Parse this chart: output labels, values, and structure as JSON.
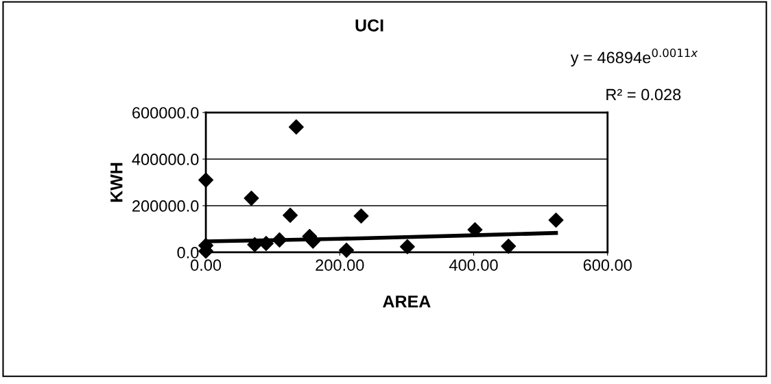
{
  "chart_data": {
    "type": "scatter",
    "title": "UCI",
    "xlabel": "AREA",
    "ylabel": "KWH",
    "annotations": [
      "y = 46894e$^{0.0011x}$",
      "R² = 0.028"
    ],
    "series": [
      {
        "color": "#000000",
        "marker": "diamond",
        "x": [
          0,
          0,
          0,
          135,
          68,
          126,
          232,
          73,
          90,
          110,
          155,
          160,
          210,
          301,
          402,
          452,
          523
        ],
        "values": [
          310000,
          29000,
          5000,
          538000,
          232000,
          159000,
          156000,
          33000,
          38000,
          53000,
          68000,
          48000,
          9000,
          24000,
          97000,
          26000,
          138000
        ]
      },
      {
        "type": "line",
        "color": "#000000",
        "marker": "none",
        "x": [
          0,
          100,
          200,
          300,
          400,
          523
        ],
        "values": [
          47000,
          52000,
          58000,
          65000,
          73000,
          83000
        ]
      }
    ],
    "xlim": [
      0,
      600
    ],
    "ylim": [
      0,
      600000
    ],
    "xticks": [
      {
        "value": 0,
        "label": "0.00"
      },
      {
        "value": 200,
        "label": "200.00"
      },
      {
        "value": 400,
        "label": "400.00"
      },
      {
        "value": 600,
        "label": "600.00"
      }
    ],
    "yticks": [
      {
        "value": 0,
        "label": "0.0"
      },
      {
        "value": 200000,
        "label": "200000.0"
      },
      {
        "value": 400000,
        "label": "400000.0"
      },
      {
        "value": 600000,
        "label": "600000.0"
      }
    ],
    "grid": "y",
    "legend": false
  }
}
